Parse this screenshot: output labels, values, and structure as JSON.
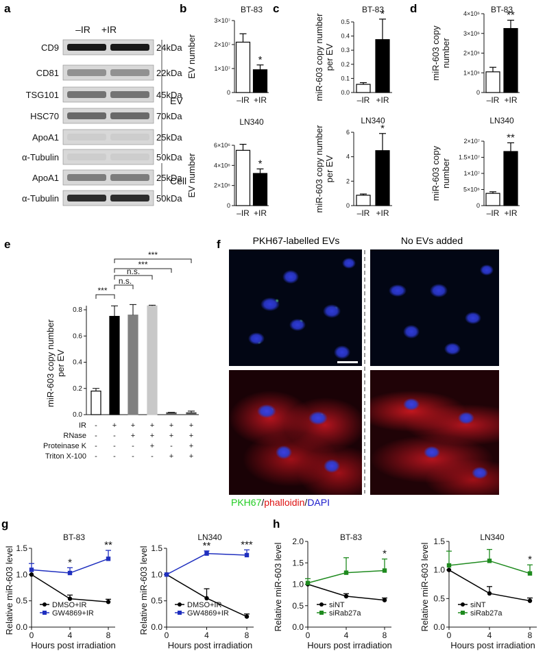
{
  "panel_letters": {
    "a": "a",
    "b": "b",
    "c": "c",
    "d": "d",
    "e": "e",
    "f": "f",
    "g": "g",
    "h": "h"
  },
  "western": {
    "columns": [
      "–IR",
      "+IR"
    ],
    "rows": [
      {
        "protein": "CD9",
        "size": "24kDa",
        "intensity": [
          0.95,
          0.95
        ]
      },
      {
        "protein": "CD81",
        "size": "22kDa",
        "intensity": [
          0.35,
          0.35
        ]
      },
      {
        "protein": "TSG101",
        "size": "45kDa",
        "intensity": [
          0.5,
          0.5
        ]
      },
      {
        "protein": "HSC70",
        "size": "70kDa",
        "intensity": [
          0.55,
          0.55
        ]
      },
      {
        "protein": "ApoA1",
        "size": "25kDa",
        "intensity": [
          0.05,
          0.05
        ]
      },
      {
        "protein": "α-Tubulin",
        "size": "50kDa",
        "intensity": [
          0.05,
          0.05
        ]
      },
      {
        "protein": "ApoA1",
        "size": "25kDa",
        "intensity": [
          0.45,
          0.45
        ]
      },
      {
        "protein": "α-Tubulin",
        "size": "50kDa",
        "intensity": [
          0.85,
          0.85
        ]
      }
    ],
    "group_ev": "EV",
    "group_cell": "Cell"
  },
  "chart_data": [
    {
      "id": "b1",
      "type": "bar",
      "title": "BT-83",
      "ylabel": "EV number",
      "categories": [
        "–IR",
        "+IR"
      ],
      "values": [
        21000000,
        9500000
      ],
      "errors": [
        3500000,
        2000000
      ],
      "ylim": [
        0,
        30000000
      ],
      "yticks": [
        "0",
        "1×10⁷",
        "2×10⁷",
        "3×10⁷"
      ],
      "stars": [
        "",
        "*"
      ]
    },
    {
      "id": "b2",
      "type": "bar",
      "title": "LN340",
      "ylabel": "EV number",
      "categories": [
        "–IR",
        "+IR"
      ],
      "values": [
        5500000,
        3200000
      ],
      "errors": [
        600000,
        450000
      ],
      "ylim": [
        0,
        6000000
      ],
      "yticks": [
        "0",
        "2×10⁶",
        "4×10⁶",
        "6×10⁶"
      ],
      "stars": [
        "",
        "*"
      ]
    },
    {
      "id": "c1",
      "type": "bar",
      "title": "BT-83",
      "ylabel": "miR-603 copy number per EV",
      "categories": [
        "–IR",
        "+IR"
      ],
      "values": [
        0.058,
        0.375
      ],
      "errors": [
        0.012,
        0.145
      ],
      "ylim": [
        0,
        0.5
      ],
      "yticks": [
        "0.0",
        "0.1",
        "0.2",
        "0.3",
        "0.4",
        "0.5"
      ],
      "stars": [
        "",
        "*"
      ]
    },
    {
      "id": "c2",
      "type": "bar",
      "title": "LN340",
      "ylabel": "miR-603 copy number per EV",
      "categories": [
        "–IR",
        "+IR"
      ],
      "values": [
        0.85,
        4.5
      ],
      "errors": [
        0.1,
        1.4
      ],
      "ylim": [
        0,
        6
      ],
      "yticks": [
        "0",
        "2",
        "4",
        "6"
      ],
      "stars": [
        "",
        "*"
      ]
    },
    {
      "id": "d1",
      "type": "bar",
      "title": "BT-83",
      "ylabel": "miR-603 copy number",
      "categories": [
        "–IR",
        "+IR"
      ],
      "values": [
        1050000,
        3250000
      ],
      "errors": [
        230000,
        420000
      ],
      "ylim": [
        0,
        4000000
      ],
      "yticks": [
        "0",
        "1×10⁶",
        "2×10⁶",
        "3×10⁶",
        "4×10⁶"
      ],
      "stars": [
        "",
        "**"
      ]
    },
    {
      "id": "d2",
      "type": "bar",
      "title": "LN340",
      "ylabel": "miR-603 copy number",
      "categories": [
        "–IR",
        "+IR"
      ],
      "values": [
        3800000,
        16800000
      ],
      "errors": [
        500000,
        2700000
      ],
      "ylim": [
        0,
        20000000
      ],
      "yticks": [
        "0",
        "5×10⁶",
        "1×10⁷",
        "1.5×10⁷",
        "2×10⁷"
      ],
      "stars": [
        "",
        "**"
      ]
    },
    {
      "id": "e",
      "type": "bar",
      "ylabel": "miR-603 copy number per EV",
      "values": [
        0.18,
        0.75,
        0.76,
        0.83,
        0.015,
        0.015
      ],
      "errors": [
        0.02,
        0.08,
        0.08,
        0.005,
        0.003,
        0.012
      ],
      "colors": [
        "#ffffff",
        "#000000",
        "#808080",
        "#c8c8c8",
        "#555555",
        "#555555"
      ],
      "ylim": [
        0,
        0.8
      ],
      "yticks": [
        "0.0",
        "0.2",
        "0.4",
        "0.6",
        "0.8"
      ],
      "conditions": [
        {
          "name": "IR",
          "signs": [
            "-",
            "+",
            "+",
            "+",
            "+",
            "+"
          ]
        },
        {
          "name": "RNase",
          "signs": [
            "-",
            "-",
            "+",
            "+",
            "+",
            "+"
          ]
        },
        {
          "name": "Proteinase K",
          "signs": [
            "-",
            "-",
            "-",
            "+",
            "-",
            "+"
          ]
        },
        {
          "name": "Triton X-100",
          "signs": [
            "-",
            "-",
            "-",
            "-",
            "+",
            "+"
          ]
        }
      ],
      "comparisons": [
        {
          "from": 0,
          "to": 1,
          "label": "***"
        },
        {
          "from": 1,
          "to": 2,
          "label": "n.s."
        },
        {
          "from": 1,
          "to": 3,
          "label": "n.s."
        },
        {
          "from": 1,
          "to": 4,
          "label": "***"
        },
        {
          "from": 1,
          "to": 5,
          "label": "***"
        }
      ]
    },
    {
      "id": "g1",
      "type": "line",
      "title": "BT-83",
      "ylabel": "Relative miR-603 level",
      "xlabel": "Hours post irradiation",
      "x": [
        0,
        4,
        8
      ],
      "xticks": [
        "0",
        "4",
        "8"
      ],
      "ylim": [
        0,
        1.5
      ],
      "yticks": [
        "0.0",
        "0.5",
        "1.0",
        "1.5"
      ],
      "series": [
        {
          "name": "DMSO+IR",
          "color": "#000000",
          "marker": "circle",
          "values": [
            1.0,
            0.54,
            0.48
          ],
          "errors": [
            0.0,
            0.07,
            0.05
          ]
        },
        {
          "name": "GW4869+IR",
          "color": "#1f2fbf",
          "marker": "square",
          "values": [
            1.09,
            1.03,
            1.3
          ],
          "errors": [
            0.12,
            0.1,
            0.16
          ]
        }
      ],
      "stars": [
        {
          "x": 4,
          "label": "*"
        },
        {
          "x": 8,
          "label": "**"
        }
      ]
    },
    {
      "id": "g2",
      "type": "line",
      "title": "LN340",
      "ylabel": "Relative miR-603 level",
      "xlabel": "Hours post irradiation",
      "x": [
        0,
        4,
        8
      ],
      "xticks": [
        "0",
        "4",
        "8"
      ],
      "ylim": [
        0,
        1.5
      ],
      "yticks": [
        "0.0",
        "0.5",
        "1.0",
        "1.5"
      ],
      "series": [
        {
          "name": "DMSO+IR",
          "color": "#000000",
          "marker": "circle",
          "values": [
            1.0,
            0.55,
            0.2
          ],
          "errors": [
            0.0,
            0.18,
            0.05
          ]
        },
        {
          "name": "GW4869+IR",
          "color": "#1f2fbf",
          "marker": "square",
          "values": [
            1.0,
            1.4,
            1.37
          ],
          "errors": [
            0.0,
            0.05,
            0.1
          ]
        }
      ],
      "stars": [
        {
          "x": 4,
          "label": "**"
        },
        {
          "x": 8,
          "label": "***"
        }
      ]
    },
    {
      "id": "h1",
      "type": "line",
      "title": "BT-83",
      "ylabel": "Relative miR-603 level",
      "xlabel": "Hours post irradiation",
      "x": [
        0,
        4,
        8
      ],
      "xticks": [
        "0",
        "4",
        "8"
      ],
      "ylim": [
        0,
        2.0
      ],
      "yticks": [
        "0.0",
        "0.5",
        "1.0",
        "1.5",
        "2.0"
      ],
      "series": [
        {
          "name": "siNT",
          "color": "#000000",
          "marker": "circle",
          "values": [
            1.0,
            0.72,
            0.63
          ],
          "errors": [
            0.0,
            0.06,
            0.05
          ]
        },
        {
          "name": "siRab27a",
          "color": "#1e8a1e",
          "marker": "square",
          "values": [
            1.03,
            1.27,
            1.32
          ],
          "errors": [
            0.1,
            0.35,
            0.27
          ]
        }
      ],
      "stars": [
        {
          "x": 8,
          "label": "*"
        }
      ]
    },
    {
      "id": "h2",
      "type": "line",
      "title": "LN340",
      "ylabel": "Relative miR-603 level",
      "xlabel": "Hours post irradiation",
      "x": [
        0,
        4,
        8
      ],
      "xticks": [
        "0",
        "4",
        "8"
      ],
      "ylim": [
        0,
        1.5
      ],
      "yticks": [
        "0.0",
        "0.5",
        "1.0",
        "1.5"
      ],
      "series": [
        {
          "name": "siNT",
          "color": "#000000",
          "marker": "circle",
          "values": [
            1.0,
            0.59,
            0.46
          ],
          "errors": [
            0.0,
            0.12,
            0.05
          ]
        },
        {
          "name": "siRab27a",
          "color": "#1e8a1e",
          "marker": "square",
          "values": [
            1.08,
            1.16,
            0.94
          ],
          "errors": [
            0.25,
            0.2,
            0.15
          ]
        }
      ],
      "stars": [
        {
          "x": 8,
          "label": "*"
        }
      ]
    }
  ],
  "microscopy": {
    "title_left": "PKH67-labelled EVs",
    "title_right": "No EVs added",
    "caption": [
      {
        "text": "PKH67",
        "color": "#22cc22"
      },
      {
        "text": "/",
        "color": "#111111"
      },
      {
        "text": "phalloidin",
        "color": "#dd1111"
      },
      {
        "text": "/",
        "color": "#111111"
      },
      {
        "text": "DAPI",
        "color": "#1a1acc"
      }
    ]
  }
}
